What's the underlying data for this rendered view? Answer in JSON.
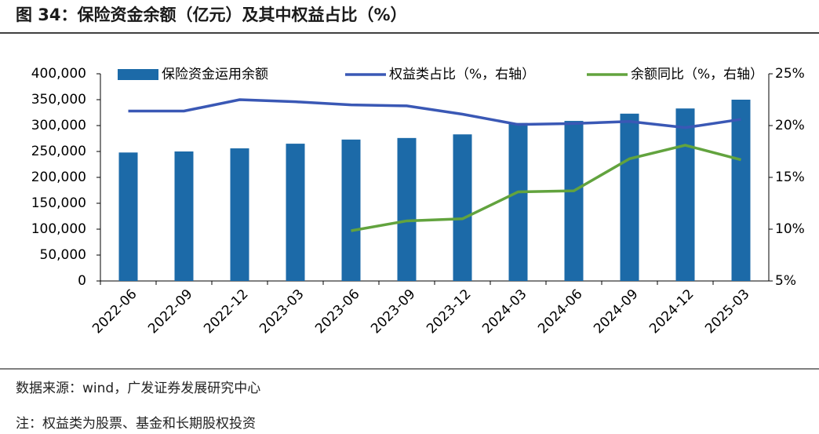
{
  "chart_data": {
    "type": "bar-line",
    "title": "图 34：保险资金余额（亿元）及其中权益占比（%）",
    "source": "数据来源：wind，广发证券发展研究中心",
    "note": "注：权益类为股票、基金和长期股权投资",
    "categories": [
      "2022-06",
      "2022-09",
      "2022-12",
      "2023-03",
      "2023-06",
      "2023-09",
      "2023-12",
      "2024-03",
      "2024-06",
      "2024-09",
      "2024-12",
      "2025-03"
    ],
    "series": [
      {
        "name": "保险资金运用余额",
        "type": "bar",
        "color": "#1c6aa8",
        "values": [
          248000,
          250000,
          256000,
          265000,
          273000,
          276000,
          283000,
          305000,
          309000,
          323000,
          333000,
          350000
        ]
      },
      {
        "name": "权益类占比（%，右轴）",
        "type": "line",
        "axis": "y2",
        "color": "#3a58b5",
        "values": [
          21.4,
          21.4,
          22.5,
          22.3,
          22.0,
          21.9,
          21.1,
          20.1,
          20.2,
          20.4,
          19.8,
          20.6
        ]
      },
      {
        "name": "余额同比（%，右轴）",
        "type": "line",
        "axis": "y2",
        "color": "#62a33e",
        "values": [
          null,
          null,
          null,
          null,
          9.85,
          10.8,
          11.0,
          13.6,
          13.7,
          16.8,
          18.1,
          16.7
        ]
      }
    ],
    "ylim": [
      0,
      400000
    ],
    "yticks": [
      0,
      {
        "value": 50000,
        "label": "50,000"
      },
      {
        "value": 100000,
        "label": "100,000"
      },
      {
        "value": 150000,
        "label": "150,000"
      },
      {
        "value": 200000,
        "label": "200,000"
      },
      {
        "value": 250000,
        "label": "250,000"
      },
      {
        "value": 300000,
        "label": "300,000"
      },
      {
        "value": 350000,
        "label": "350,000"
      },
      {
        "value": 400000,
        "label": "400,000"
      }
    ],
    "y2lim": [
      5,
      25
    ],
    "y2ticks": [
      {
        "value": 5,
        "label": "5%"
      },
      {
        "value": 10,
        "label": "10%"
      },
      {
        "value": 15,
        "label": "15%"
      },
      {
        "value": 20,
        "label": "20%"
      },
      {
        "value": 25,
        "label": "25%"
      }
    ],
    "legend": "top"
  }
}
